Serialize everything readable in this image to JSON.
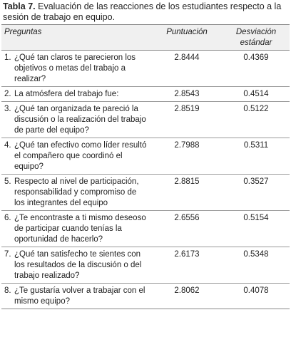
{
  "caption": {
    "label": "Tabla 7.",
    "text": "Evaluación de las reacciones de los estudiantes respecto a la sesión de trabajo en equipo."
  },
  "table": {
    "headers": {
      "preguntas": "Preguntas",
      "puntuacion": "Puntuación",
      "desviacion": "Desviación estándar"
    },
    "rows": [
      {
        "num": "1.",
        "question": "¿Qué tan claros te parecieron los objetivos o metas del trabajo a realizar?",
        "score": "2.8444",
        "sd": "0.4369"
      },
      {
        "num": "2.",
        "question": "La atmósfera del trabajo fue:",
        "score": "2.8543",
        "sd": "0.4514"
      },
      {
        "num": "3.",
        "question": "¿Qué tan organizada te pareció la discusión o la realización del trabajo de parte del equipo?",
        "score": "2.8519",
        "sd": "0.5122"
      },
      {
        "num": "4.",
        "question": "¿Qué tan efectivo como líder resultó el compañero que coordinó el equipo?",
        "score": "2.7988",
        "sd": "0.5311"
      },
      {
        "num": "5.",
        "question": "Respecto al nivel de participación, responsabilidad y compromiso de los integrantes del equipo",
        "score": "2.8815",
        "sd": "0.3527"
      },
      {
        "num": "6.",
        "question": "¿Te encontraste a ti mismo deseoso de participar cuando tenías la oportunidad de hacerlo?",
        "score": "2.6556",
        "sd": "0.5154"
      },
      {
        "num": "7.",
        "question": "¿Qué tan satisfecho te sientes con los resultados de la discusión o del trabajo realizado?",
        "score": "2.6173",
        "sd": "0.5348"
      },
      {
        "num": "8.",
        "question": "¿Te gustaría volver a trabajar con el mismo equipo?",
        "score": "2.8062",
        "sd": "0.4078"
      }
    ]
  }
}
